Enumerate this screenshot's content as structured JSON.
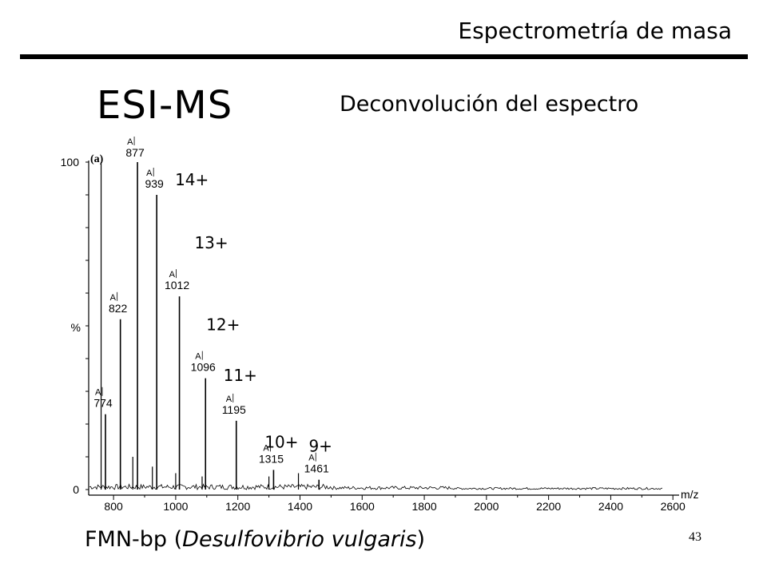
{
  "slide": {
    "header_title": "Espectrometría de masa",
    "main_title": "ESI-MS",
    "subtitle": "Deconvolución del espectro",
    "caption_prefix": "FMN-bp (",
    "caption_species": "Desulfovibrio vulgaris",
    "caption_suffix": ")",
    "page_number": "43"
  },
  "chart_data": {
    "type": "line",
    "panel_label": "(a)",
    "xlabel": "m/z",
    "ylabel": "%",
    "xlim": [
      720,
      2620
    ],
    "ylim": [
      0,
      100
    ],
    "x_ticks": [
      800,
      1000,
      1200,
      1400,
      1600,
      1800,
      2000,
      2200,
      2400,
      2600
    ],
    "y_ticks": [
      0,
      100
    ],
    "peak_marker": "A",
    "peaks": [
      {
        "mz": 774,
        "label": "774",
        "intensity": 23
      },
      {
        "mz": 822,
        "label": "822",
        "intensity": 52
      },
      {
        "mz": 877,
        "label": "877",
        "intensity": 100
      },
      {
        "mz": 939,
        "label": "939",
        "intensity": 90
      },
      {
        "mz": 1012,
        "label": "1012",
        "intensity": 59
      },
      {
        "mz": 1096,
        "label": "1096",
        "intensity": 34
      },
      {
        "mz": 1195,
        "label": "1195",
        "intensity": 21
      },
      {
        "mz": 1315,
        "label": "1315",
        "intensity": 6
      },
      {
        "mz": 1461,
        "label": "1461",
        "intensity": 3
      }
    ],
    "minor_peaks": [
      {
        "mz": 760,
        "intensity": 100
      },
      {
        "mz": 862,
        "intensity": 10
      },
      {
        "mz": 925,
        "intensity": 7
      },
      {
        "mz": 1000,
        "intensity": 5
      },
      {
        "mz": 1085,
        "intensity": 4
      },
      {
        "mz": 1300,
        "intensity": 4
      },
      {
        "mz": 1395,
        "intensity": 5
      }
    ],
    "charge_states": [
      "14+",
      "13+",
      "12+",
      "11+",
      "10+",
      "9+"
    ]
  }
}
